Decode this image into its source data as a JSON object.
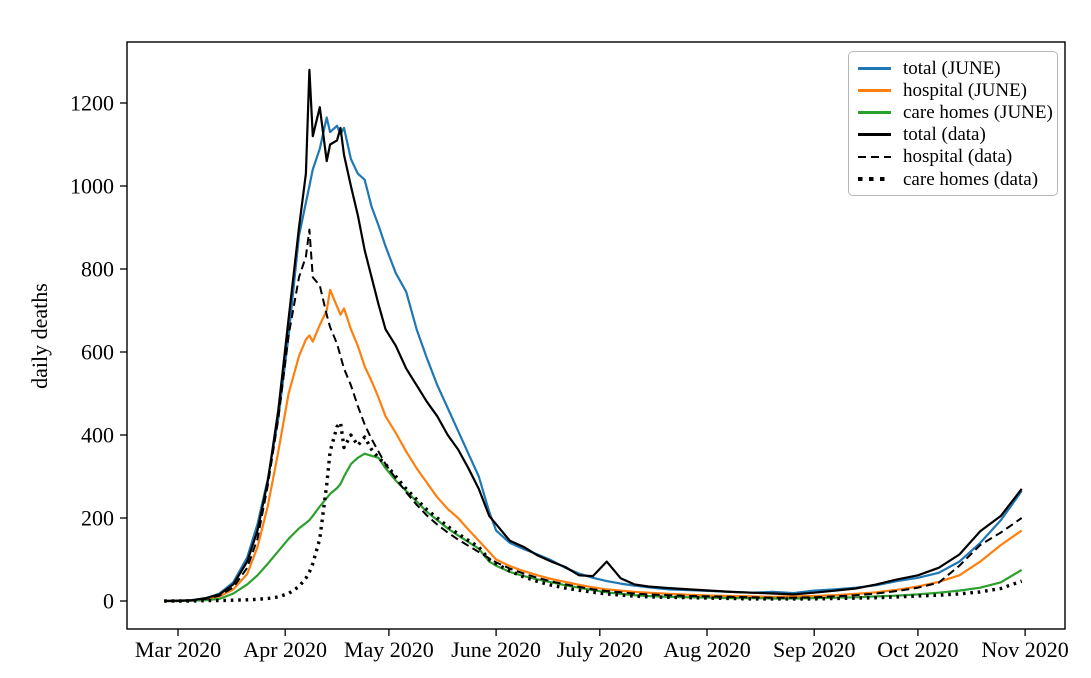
{
  "chart_data": {
    "type": "line",
    "title": "",
    "xlabel": "",
    "ylabel": "daily deaths",
    "grid": false,
    "legend_position": "upper right",
    "yticks": [
      0,
      200,
      400,
      600,
      800,
      1000,
      1200
    ],
    "ylim": [
      -65,
      1345
    ],
    "x_tick_labels": [
      "Mar 2020",
      "Apr 2020",
      "May 2020",
      "June 2020",
      "July 2020",
      "Aug 2020",
      "Sep 2020",
      "Oct 2020",
      "Nov 2020"
    ],
    "x_tick_days": [
      4,
      35,
      65,
      96,
      126,
      157,
      188,
      218,
      249
    ],
    "x_unit": "days (day 0 = late Feb 2020, ticks at month starts)",
    "days": [
      0,
      4,
      8,
      12,
      16,
      20,
      24,
      27,
      30,
      33,
      36,
      39,
      41,
      42,
      43,
      45,
      47,
      48,
      50,
      51,
      52,
      54,
      56,
      58,
      60,
      62,
      64,
      67,
      70,
      73,
      76,
      79,
      82,
      85,
      88,
      91,
      94,
      96,
      100,
      104,
      108,
      112,
      116,
      120,
      124,
      128,
      132,
      136,
      140,
      146,
      152,
      158,
      164,
      170,
      176,
      182,
      188,
      194,
      200,
      206,
      212,
      218,
      224,
      230,
      236,
      242,
      248
    ],
    "series": [
      {
        "name": "total (JUNE)",
        "color": "#1f77b4",
        "style": "solid",
        "values": [
          0,
          0,
          2,
          6,
          18,
          45,
          105,
          185,
          295,
          440,
          640,
          880,
          960,
          1000,
          1040,
          1090,
          1165,
          1130,
          1145,
          1125,
          1140,
          1065,
          1030,
          1015,
          950,
          905,
          855,
          790,
          745,
          655,
          585,
          520,
          465,
          410,
          355,
          300,
          215,
          170,
          140,
          125,
          112,
          98,
          80,
          66,
          56,
          48,
          42,
          37,
          33,
          28,
          26,
          24,
          22,
          20,
          22,
          19,
          25,
          28,
          32,
          38,
          48,
          56,
          68,
          95,
          140,
          195,
          265
        ]
      },
      {
        "name": "hospital (JUNE)",
        "color": "#ff7f0e",
        "style": "solid",
        "values": [
          0,
          0,
          1,
          4,
          11,
          28,
          65,
          130,
          230,
          360,
          500,
          590,
          630,
          640,
          625,
          665,
          700,
          750,
          710,
          690,
          705,
          655,
          615,
          565,
          530,
          490,
          445,
          405,
          360,
          320,
          285,
          250,
          222,
          200,
          172,
          145,
          118,
          100,
          84,
          72,
          62,
          53,
          46,
          39,
          33,
          28,
          25,
          22,
          20,
          17,
          15,
          13,
          12,
          11,
          10,
          11,
          12,
          14,
          17,
          21,
          27,
          35,
          46,
          62,
          95,
          135,
          170
        ]
      },
      {
        "name": "care homes (JUNE)",
        "color": "#2ca02c",
        "style": "solid",
        "values": [
          0,
          0,
          1,
          2,
          5,
          18,
          40,
          62,
          90,
          120,
          150,
          175,
          188,
          195,
          205,
          228,
          248,
          258,
          272,
          282,
          300,
          330,
          345,
          355,
          350,
          345,
          320,
          290,
          265,
          240,
          215,
          195,
          175,
          158,
          142,
          126,
          95,
          85,
          70,
          60,
          52,
          45,
          38,
          32,
          26,
          21,
          17,
          14,
          12,
          10,
          9,
          8,
          7,
          7,
          6,
          6,
          7,
          8,
          9,
          11,
          13,
          16,
          20,
          25,
          32,
          45,
          75
        ]
      },
      {
        "name": "total (data)",
        "color": "#000000",
        "style": "solid",
        "values": [
          0,
          1,
          2,
          7,
          16,
          40,
          95,
          170,
          290,
          460,
          680,
          900,
          1030,
          1280,
          1120,
          1190,
          1060,
          1100,
          1110,
          1140,
          1075,
          1000,
          930,
          845,
          780,
          715,
          655,
          615,
          560,
          520,
          480,
          445,
          400,
          365,
          320,
          270,
          205,
          185,
          145,
          130,
          110,
          95,
          82,
          62,
          60,
          95,
          55,
          40,
          35,
          31,
          28,
          25,
          22,
          20,
          18,
          16,
          20,
          25,
          30,
          40,
          52,
          62,
          80,
          112,
          168,
          205,
          270
        ]
      },
      {
        "name": "hospital (data)",
        "color": "#000000",
        "style": "dashed",
        "values": [
          0,
          0,
          2,
          5,
          13,
          33,
          80,
          150,
          280,
          440,
          640,
          780,
          830,
          895,
          780,
          760,
          690,
          660,
          620,
          590,
          560,
          520,
          470,
          425,
          390,
          360,
          330,
          295,
          262,
          232,
          206,
          184,
          165,
          148,
          133,
          118,
          103,
          93,
          78,
          66,
          56,
          47,
          40,
          34,
          28,
          24,
          21,
          18,
          16,
          14,
          12,
          11,
          10,
          9,
          8,
          8,
          9,
          11,
          14,
          18,
          24,
          32,
          44,
          85,
          135,
          165,
          200
        ]
      },
      {
        "name": "care homes (data)",
        "color": "#000000",
        "style": "dotted",
        "values": [
          0,
          0,
          0,
          1,
          1,
          2,
          3,
          4,
          6,
          10,
          18,
          35,
          55,
          70,
          90,
          150,
          280,
          360,
          420,
          430,
          370,
          400,
          375,
          395,
          365,
          345,
          330,
          300,
          270,
          245,
          220,
          200,
          180,
          162,
          146,
          130,
          100,
          90,
          72,
          58,
          47,
          38,
          31,
          26,
          21,
          17,
          14,
          12,
          10,
          9,
          8,
          7,
          6,
          5,
          5,
          5,
          5,
          6,
          7,
          8,
          10,
          12,
          14,
          17,
          22,
          30,
          48
        ]
      }
    ]
  }
}
